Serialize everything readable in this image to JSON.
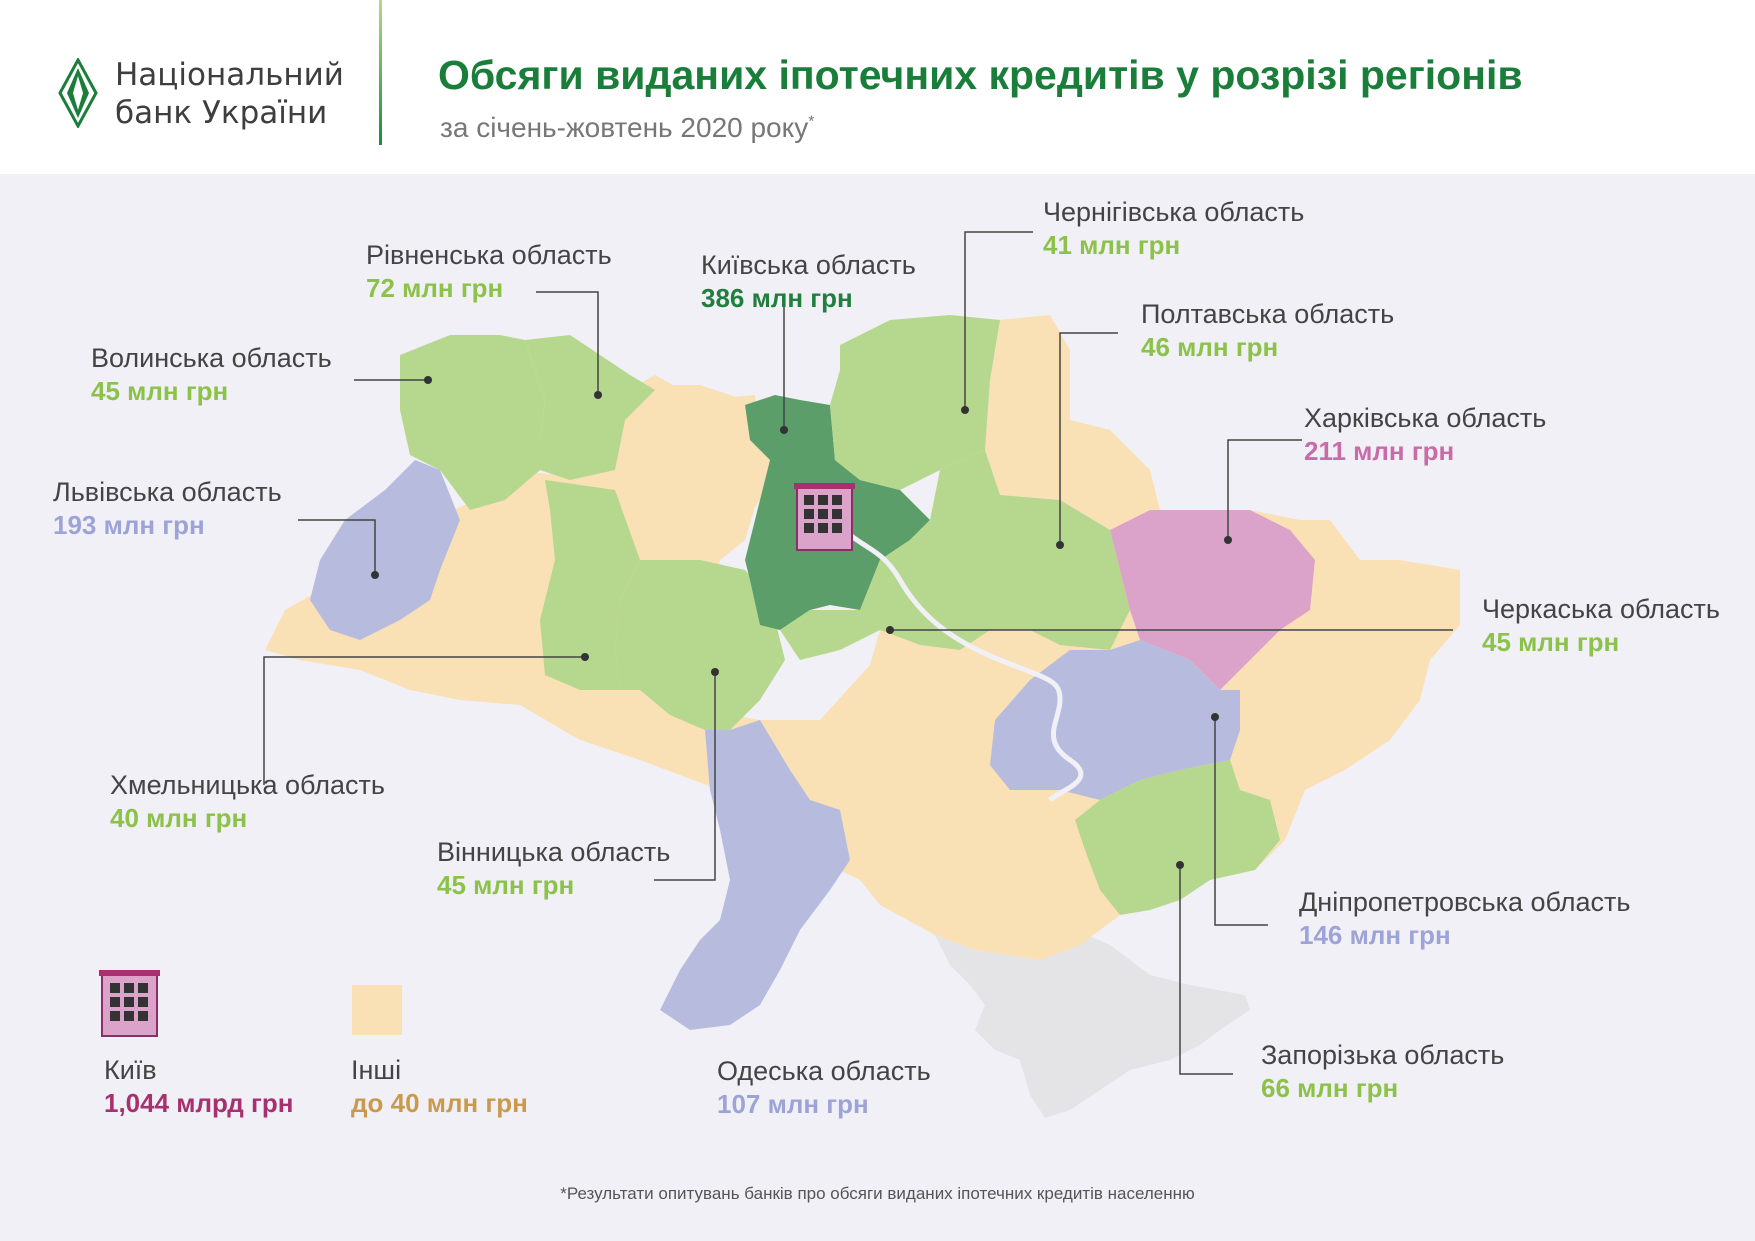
{
  "header": {
    "bank_line1": "Національний",
    "bank_line2": "банк України",
    "title": "Обсяги виданих іпотечних кредитів у розрізі регіонів",
    "subtitle": "за січень-жовтень 2020 року",
    "subtitle_mark": "*"
  },
  "colors": {
    "green_light": "#b6d78e",
    "green_dark": "#5c9e6a",
    "lavender": "#b7bcde",
    "pink": "#dba3c9",
    "beige": "#f9e1b5",
    "crimea": "#e4e4e6",
    "val_green": "#8cc24a",
    "val_dark_green": "#217f3e",
    "val_lavender": "#9da3d6",
    "val_pink": "#c96aa9",
    "val_crimson": "#a8306f",
    "val_tan": "#c99a4e"
  },
  "regions": [
    {
      "name": "Чернігівська область",
      "value": "41 млн грн",
      "color": "val_green"
    },
    {
      "name": "Рівненська область",
      "value": "72 млн грн",
      "color": "val_green"
    },
    {
      "name": "Київська область",
      "value": "386 млн грн",
      "color": "val_dark_green"
    },
    {
      "name": "Полтавська область",
      "value": "46 млн грн",
      "color": "val_green"
    },
    {
      "name": "Волинська область",
      "value": "45 млн грн",
      "color": "val_green"
    },
    {
      "name": "Харківська область",
      "value": "211 млн грн",
      "color": "val_pink"
    },
    {
      "name": "Львівська область",
      "value": "193 млн грн",
      "color": "val_lavender"
    },
    {
      "name": "Черкаська область",
      "value": "45 млн грн",
      "color": "val_green"
    },
    {
      "name": "Хмельницька область",
      "value": "40 млн грн",
      "color": "val_green"
    },
    {
      "name": "Вінницька область",
      "value": "45 млн грн",
      "color": "val_green"
    },
    {
      "name": "Дніпропетровська область",
      "value": "146 млн грн",
      "color": "val_lavender"
    },
    {
      "name": "Запорізька область",
      "value": "66 млн грн",
      "color": "val_green"
    },
    {
      "name": "Одеська область",
      "value": "107 млн грн",
      "color": "val_lavender"
    }
  ],
  "legend": {
    "kyiv_label": "Київ",
    "kyiv_value": "1,044 млрд грн",
    "others_label": "Інші",
    "others_value": "до 40 млн грн"
  },
  "footnote": "*Результати опитувань банків про обсяги виданих іпотечних кредитів населенню"
}
